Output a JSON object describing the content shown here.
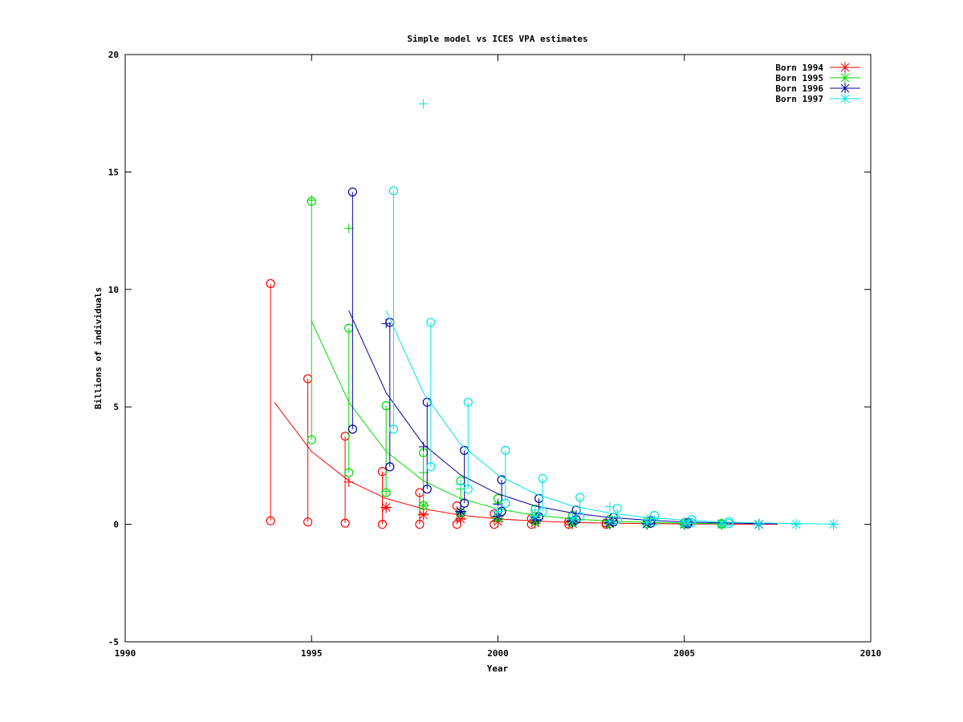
{
  "chart_data": {
    "type": "line",
    "title": "Simple model vs ICES VPA estimates",
    "xlabel": "Year",
    "ylabel": "Billions of individuals",
    "xlim": [
      1990,
      2010
    ],
    "ylim": [
      -5,
      20
    ],
    "xticks": [
      "1990",
      "1995",
      "2000",
      "2005",
      "2010"
    ],
    "yticks": [
      "-5",
      "0",
      "5",
      "10",
      "15",
      "20"
    ],
    "grid": false,
    "legend_position": "top-right",
    "series": [
      {
        "name": "Born 1994",
        "color": "#ff0000",
        "model": {
          "x": [
            1994,
            1995,
            1996,
            1997,
            1998,
            1999,
            2000,
            2001,
            2002,
            2003,
            2004,
            2005,
            2006,
            2007.5
          ],
          "y": [
            5.2,
            3.1,
            1.85,
            1.1,
            0.66,
            0.39,
            0.23,
            0.14,
            0.08,
            0.05,
            0.03,
            0.02,
            0.01,
            0.0
          ]
        },
        "vpa_crosses": [
          [
            1996,
            1.8
          ],
          [
            1997,
            0.7
          ],
          [
            1998,
            0.45
          ],
          [
            1999,
            0.25
          ],
          [
            2000,
            0.12
          ],
          [
            2001,
            0.05
          ],
          [
            2002,
            0.02
          ],
          [
            2003,
            0.01
          ]
        ],
        "stars": [
          [
            1997,
            0.72
          ],
          [
            1998,
            0.4
          ],
          [
            1999,
            0.22
          ],
          [
            2000,
            0.12
          ],
          [
            2001,
            0.06
          ],
          [
            2002,
            0.03
          ],
          [
            2003,
            0.02
          ],
          [
            2004,
            0.01
          ],
          [
            2005,
            0.0
          ],
          [
            2006,
            0.0
          ],
          [
            2007,
            0.0
          ]
        ],
        "ranges": [
          [
            1994,
            0.15,
            10.25
          ],
          [
            1995,
            0.1,
            6.2
          ],
          [
            1996,
            0.05,
            3.75
          ],
          [
            1997,
            0.0,
            2.25
          ],
          [
            1998,
            0.0,
            1.35
          ],
          [
            1999,
            0.0,
            0.78
          ],
          [
            2000,
            0.0,
            0.45
          ],
          [
            2001,
            0.0,
            0.25
          ],
          [
            2002,
            0.0,
            0.12
          ],
          [
            2003,
            0.0,
            0.06
          ]
        ]
      },
      {
        "name": "Born 1995",
        "color": "#00dd00",
        "model": {
          "x": [
            1995,
            1996,
            1997,
            1998,
            1999,
            2000,
            2001,
            2002,
            2003,
            2004,
            2005,
            2006
          ],
          "y": [
            8.65,
            5.2,
            3.1,
            1.85,
            1.1,
            0.65,
            0.39,
            0.23,
            0.14,
            0.08,
            0.05,
            0.03
          ]
        },
        "vpa_crosses": [
          [
            1995,
            13.8
          ],
          [
            1996,
            12.6
          ],
          [
            1997,
            1.4
          ],
          [
            1998,
            2.2
          ],
          [
            1999,
            1.5
          ],
          [
            2000,
            0.9
          ],
          [
            2001,
            0.4
          ],
          [
            2002,
            0.2
          ],
          [
            2003,
            0.1
          ]
        ],
        "stars": [
          [
            1998,
            0.8
          ],
          [
            1999,
            0.45
          ],
          [
            2000,
            0.25
          ],
          [
            2001,
            0.12
          ],
          [
            2002,
            0.06
          ],
          [
            2003,
            0.03
          ],
          [
            2004,
            0.02
          ],
          [
            2005,
            0.01
          ],
          [
            2006,
            0.0
          ]
        ],
        "ranges": [
          [
            1995,
            3.6,
            13.75
          ],
          [
            1996,
            2.2,
            8.35
          ],
          [
            1997,
            1.35,
            5.05
          ],
          [
            1998,
            0.8,
            3.05
          ],
          [
            1999,
            0.5,
            1.85
          ],
          [
            2000,
            0.3,
            1.1
          ],
          [
            2001,
            0.15,
            0.65
          ],
          [
            2002,
            0.08,
            0.38
          ],
          [
            2003,
            0.03,
            0.2
          ],
          [
            2004,
            0.02,
            0.12
          ],
          [
            2005,
            0.01,
            0.07
          ],
          [
            2006,
            0.0,
            0.04
          ]
        ]
      },
      {
        "name": "Born 1996",
        "color": "#0000a0",
        "model": {
          "x": [
            1996,
            1997,
            1998,
            1999,
            2000,
            2001,
            2002,
            2003,
            2004,
            2005,
            2006,
            2007.5
          ],
          "y": [
            9.1,
            5.6,
            3.4,
            2.1,
            1.3,
            0.78,
            0.48,
            0.29,
            0.18,
            0.1,
            0.06,
            0.02
          ]
        },
        "vpa_crosses": [
          [
            1997,
            8.55
          ],
          [
            1998,
            3.3
          ],
          [
            1999,
            0.5
          ],
          [
            2000,
            0.85
          ],
          [
            2001,
            0.3
          ],
          [
            2002,
            0.15
          ],
          [
            2003,
            0.08
          ]
        ],
        "stars": [
          [
            1999,
            0.55
          ],
          [
            2000,
            0.35
          ],
          [
            2001,
            0.2
          ],
          [
            2002,
            0.12
          ],
          [
            2003,
            0.06
          ],
          [
            2004,
            0.03
          ],
          [
            2005,
            0.02
          ],
          [
            2007,
            0.0
          ]
        ],
        "ranges": [
          [
            1996,
            4.05,
            14.15
          ],
          [
            1997,
            2.45,
            8.6
          ],
          [
            1998,
            1.5,
            5.2
          ],
          [
            1999,
            0.9,
            3.15
          ],
          [
            2000,
            0.55,
            1.9
          ],
          [
            2001,
            0.32,
            1.1
          ],
          [
            2002,
            0.2,
            0.6
          ],
          [
            2003,
            0.1,
            0.3
          ],
          [
            2004,
            0.05,
            0.16
          ],
          [
            2005,
            0.02,
            0.08
          ]
        ]
      },
      {
        "name": "Born 1997",
        "color": "#00e5e5",
        "model": {
          "x": [
            1997,
            1998,
            1999,
            2000,
            2001,
            2002,
            2003,
            2004,
            2005,
            2006,
            2007,
            2008,
            2009
          ],
          "y": [
            9.1,
            5.6,
            3.4,
            2.1,
            1.3,
            0.78,
            0.48,
            0.29,
            0.18,
            0.1,
            0.06,
            0.03,
            0.01
          ]
        },
        "vpa_crosses": [
          [
            1998,
            17.9
          ],
          [
            1999,
            1.7
          ],
          [
            2001,
            0.6
          ],
          [
            2002,
            0.3
          ],
          [
            2003,
            0.75
          ],
          [
            2004,
            0.2
          ],
          [
            2005,
            0.1
          ]
        ],
        "stars": [
          [
            2000,
            0.55
          ],
          [
            2001,
            0.35
          ],
          [
            2002,
            0.2
          ],
          [
            2003,
            0.12
          ],
          [
            2004,
            0.06
          ],
          [
            2005,
            0.03
          ],
          [
            2006,
            0.02
          ],
          [
            2007,
            0.01
          ],
          [
            2008,
            0.0
          ],
          [
            2009,
            0.0
          ]
        ],
        "ranges": [
          [
            1997,
            4.05,
            14.2
          ],
          [
            1998,
            2.45,
            8.6
          ],
          [
            1999,
            1.5,
            5.2
          ],
          [
            2000,
            0.9,
            3.15
          ],
          [
            2001,
            0.55,
            1.95
          ],
          [
            2002,
            0.33,
            1.15
          ],
          [
            2003,
            0.2,
            0.68
          ],
          [
            2004,
            0.12,
            0.38
          ],
          [
            2005,
            0.07,
            0.2
          ],
          [
            2006,
            0.04,
            0.12
          ]
        ]
      }
    ]
  }
}
